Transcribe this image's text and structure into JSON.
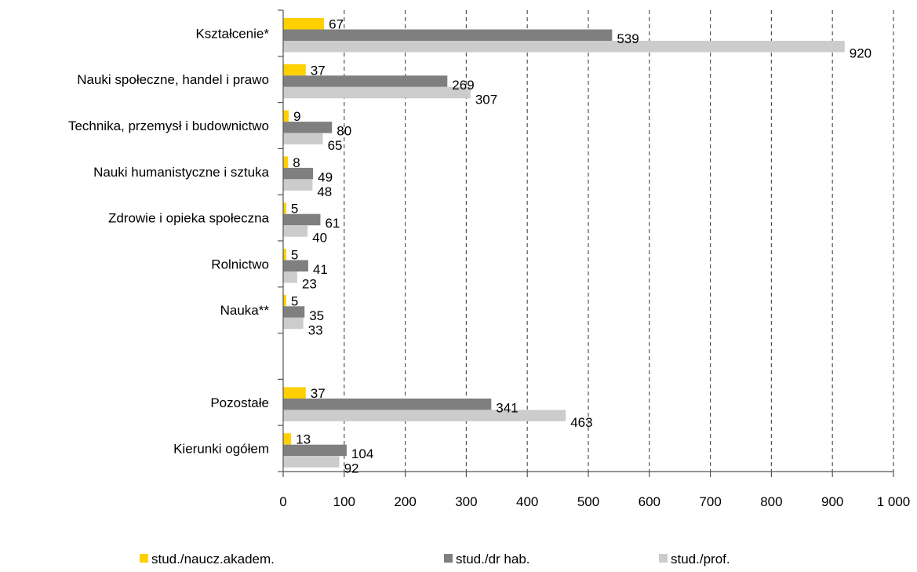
{
  "chart_data": {
    "type": "bar",
    "orientation": "horizontal",
    "categories": [
      "Kształcenie*",
      "Nauki społeczne, handel i prawo",
      "Technika, przemysł i budownictwo",
      "Nauki humanistyczne i sztuka",
      "Zdrowie i opieka społeczna",
      "Rolnictwo",
      "Nauka**",
      "",
      "Pozostałe",
      "Kierunki ogółem"
    ],
    "series": [
      {
        "name": "stud./naucz.akadem.",
        "color": "#FFD000",
        "values": [
          67,
          37,
          9,
          8,
          5,
          5,
          5,
          null,
          37,
          13
        ]
      },
      {
        "name": "stud./dr hab.",
        "color": "#7F7F7F",
        "values": [
          539,
          269,
          80,
          49,
          61,
          41,
          35,
          null,
          341,
          104
        ]
      },
      {
        "name": "stud./prof.",
        "color": "#CCCCCC",
        "values": [
          920,
          307,
          65,
          48,
          40,
          23,
          33,
          null,
          463,
          92
        ]
      }
    ],
    "xlim": [
      0,
      1000
    ],
    "xticks": [
      0,
      100,
      200,
      300,
      400,
      500,
      600,
      700,
      800,
      900,
      1000
    ],
    "xtick_labels": [
      "0",
      "100",
      "200",
      "300",
      "400",
      "500",
      "600",
      "700",
      "800",
      "900",
      "1 000"
    ],
    "grid": "vertical-dashed",
    "legend_position": "bottom"
  }
}
